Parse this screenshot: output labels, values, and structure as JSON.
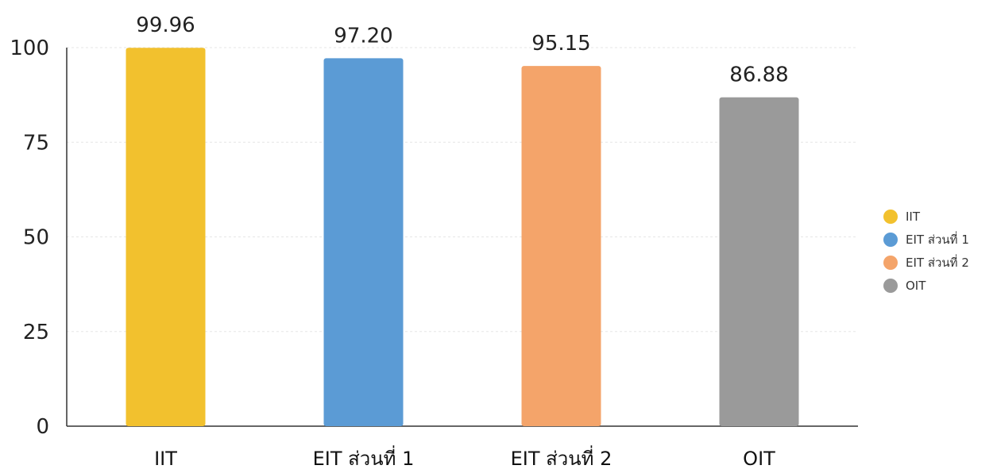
{
  "chart_data": {
    "type": "bar",
    "categories": [
      "IIT",
      "EIT ส่วนที่ 1",
      "EIT ส่วนที่ 2",
      "OIT"
    ],
    "values": [
      99.96,
      97.2,
      95.15,
      86.88
    ],
    "value_labels": [
      "99.96",
      "97.20",
      "95.15",
      "86.88"
    ],
    "colors": [
      "#F2C12E",
      "#5B9BD5",
      "#F4A46A",
      "#9A9A9A"
    ],
    "ylim": [
      0,
      100
    ],
    "yticks": [
      0,
      25,
      50,
      75,
      100
    ],
    "grid": true,
    "legend": {
      "position": "right",
      "entries": [
        "IIT",
        "EIT ส่วนที่ 1",
        "EIT ส่วนที่ 2",
        "OIT"
      ]
    },
    "title": "",
    "xlabel": "",
    "ylabel": ""
  }
}
